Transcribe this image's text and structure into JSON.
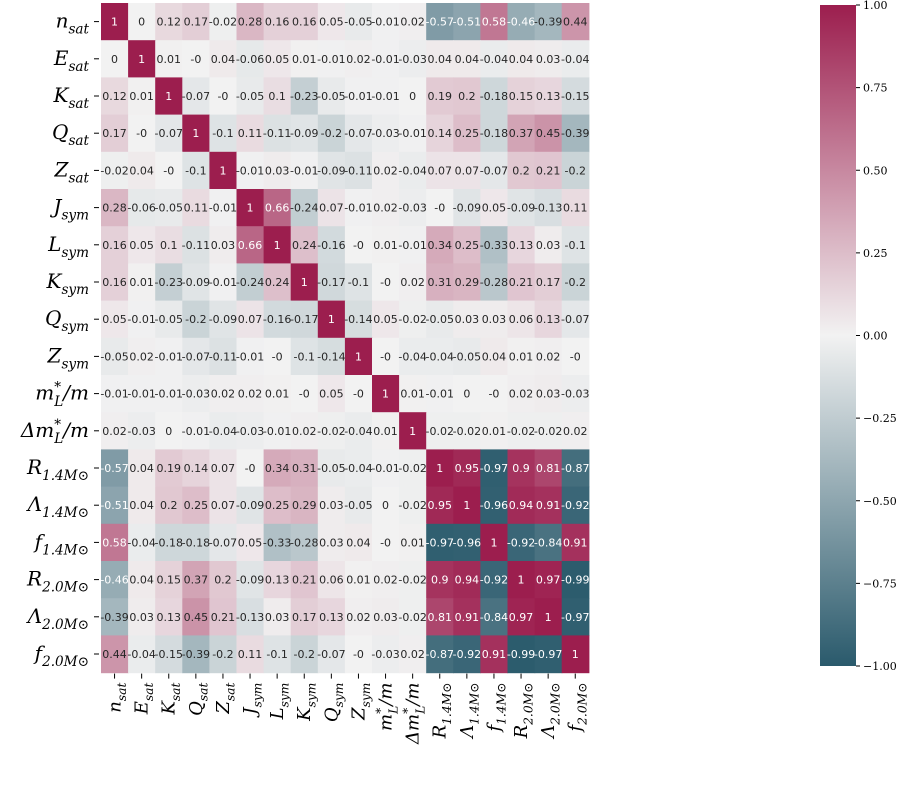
{
  "chart_data": {
    "type": "heatmap",
    "row_labels": [
      "n_sat",
      "E_sat",
      "K_sat",
      "Q_sat",
      "Z_sat",
      "J_sym",
      "L_sym",
      "K_sym",
      "Q_sym",
      "Z_sym",
      "m*_L/m",
      "Δm*_L/m",
      "R_1.4M⊙",
      "Λ_1.4M⊙",
      "f_1.4M⊙",
      "R_2.0M⊙",
      "Λ_2.0M⊙",
      "f_2.0M⊙"
    ],
    "col_labels": [
      "n_sat",
      "E_sat",
      "K_sat",
      "Q_sat",
      "Z_sat",
      "J_sym",
      "L_sym",
      "K_sym",
      "Q_sym",
      "Z_sym",
      "m*_L/m",
      "Δm*_L/m",
      "R_1.4M⊙",
      "Λ_1.4M⊙",
      "f_1.4M⊙",
      "R_2.0M⊙",
      "Λ_2.0M⊙",
      "f_2.0M⊙"
    ],
    "values": [
      [
        1,
        0,
        0.12,
        0.17,
        -0.02,
        0.28,
        0.16,
        0.16,
        0.05,
        -0.05,
        -0.01,
        0.02,
        -0.57,
        -0.51,
        0.58,
        -0.46,
        -0.39,
        0.44
      ],
      [
        0,
        1,
        0.01,
        0,
        0.04,
        -0.06,
        0.05,
        0.01,
        -0.01,
        0.02,
        -0.01,
        -0.03,
        0.04,
        0.04,
        -0.04,
        0.04,
        0.03,
        -0.04
      ],
      [
        0.12,
        0.01,
        1,
        -0.07,
        0,
        -0.05,
        0.1,
        -0.23,
        -0.05,
        -0.01,
        -0.01,
        0,
        0.19,
        0.2,
        -0.18,
        0.15,
        0.13,
        -0.15
      ],
      [
        0.17,
        0,
        -0.07,
        1,
        -0.1,
        0.11,
        -0.11,
        -0.09,
        -0.2,
        -0.07,
        -0.03,
        -0.01,
        0.14,
        0.25,
        -0.18,
        0.37,
        0.45,
        -0.39
      ],
      [
        -0.02,
        0.04,
        0,
        -0.1,
        1,
        -0.01,
        0.03,
        -0.01,
        -0.09,
        -0.11,
        0.02,
        -0.04,
        0.07,
        0.07,
        -0.07,
        0.2,
        0.21,
        -0.2
      ],
      [
        0.28,
        -0.06,
        -0.05,
        0.11,
        -0.01,
        1,
        0.66,
        -0.24,
        0.07,
        -0.01,
        0.02,
        -0.03,
        0,
        -0.09,
        0.05,
        -0.09,
        -0.13,
        0.11
      ],
      [
        0.16,
        0.05,
        0.1,
        -0.11,
        0.03,
        0.66,
        1,
        0.24,
        -0.16,
        0,
        0.01,
        -0.01,
        0.34,
        0.25,
        -0.33,
        0.13,
        0.03,
        -0.1
      ],
      [
        0.16,
        0.01,
        -0.23,
        -0.09,
        -0.01,
        -0.24,
        0.24,
        1,
        -0.17,
        -0.1,
        0,
        0.02,
        0.31,
        0.29,
        -0.28,
        0.21,
        0.17,
        -0.2
      ],
      [
        0.05,
        -0.01,
        -0.05,
        -0.2,
        -0.09,
        0.07,
        -0.16,
        -0.17,
        1,
        -0.14,
        0.05,
        -0.02,
        -0.05,
        0.03,
        0.03,
        0.06,
        0.13,
        -0.07
      ],
      [
        -0.05,
        0.02,
        -0.01,
        -0.07,
        -0.11,
        -0.01,
        0,
        -0.1,
        -0.14,
        1,
        0,
        -0.04,
        -0.04,
        -0.05,
        0.04,
        0.01,
        0.02,
        0
      ],
      [
        -0.01,
        -0.01,
        -0.01,
        -0.03,
        0.02,
        0.02,
        0.01,
        0,
        0.05,
        0,
        1,
        0.01,
        -0.01,
        0,
        0,
        0.02,
        0.03,
        -0.03
      ],
      [
        0.02,
        -0.03,
        0,
        -0.01,
        -0.04,
        -0.03,
        -0.01,
        0.02,
        -0.02,
        -0.04,
        0.01,
        1,
        -0.02,
        -0.02,
        0.01,
        -0.02,
        -0.02,
        0.02
      ],
      [
        -0.57,
        0.04,
        0.19,
        0.14,
        0.07,
        0,
        0.34,
        0.31,
        -0.05,
        -0.04,
        -0.01,
        -0.02,
        1,
        0.95,
        -0.97,
        0.9,
        0.81,
        -0.87
      ],
      [
        -0.51,
        0.04,
        0.2,
        0.25,
        0.07,
        -0.09,
        0.25,
        0.29,
        0.03,
        -0.05,
        0,
        -0.02,
        0.95,
        1,
        -0.96,
        0.94,
        0.91,
        -0.92
      ],
      [
        0.58,
        -0.04,
        -0.18,
        -0.18,
        -0.07,
        0.05,
        -0.33,
        -0.28,
        0.03,
        0.04,
        0,
        0.01,
        -0.97,
        -0.96,
        1,
        -0.92,
        -0.84,
        0.91
      ],
      [
        -0.46,
        0.04,
        0.15,
        0.37,
        0.2,
        -0.09,
        0.13,
        0.21,
        0.06,
        0.01,
        0.02,
        -0.02,
        0.9,
        0.94,
        -0.92,
        1,
        0.97,
        -0.99
      ],
      [
        -0.39,
        0.03,
        0.13,
        0.45,
        0.21,
        -0.13,
        0.03,
        0.17,
        0.13,
        0.02,
        0.03,
        -0.02,
        0.81,
        0.91,
        -0.84,
        0.97,
        1,
        -0.97
      ],
      [
        0.44,
        -0.04,
        -0.15,
        -0.39,
        -0.2,
        0.11,
        -0.1,
        -0.2,
        -0.07,
        0,
        -0.03,
        0.02,
        -0.87,
        -0.92,
        0.91,
        -0.99,
        -0.97,
        1
      ]
    ],
    "colorbar": {
      "range": [
        -1,
        1
      ],
      "ticks": [
        "1.00",
        "0.75",
        "0.50",
        "0.25",
        "0.00",
        "−0.25",
        "−0.50",
        "−0.75",
        "−1.00"
      ],
      "colors": {
        "negative": "#2a5a6c",
        "neutral": "#f2f2f2",
        "positive": "#9c1e4e"
      }
    }
  }
}
